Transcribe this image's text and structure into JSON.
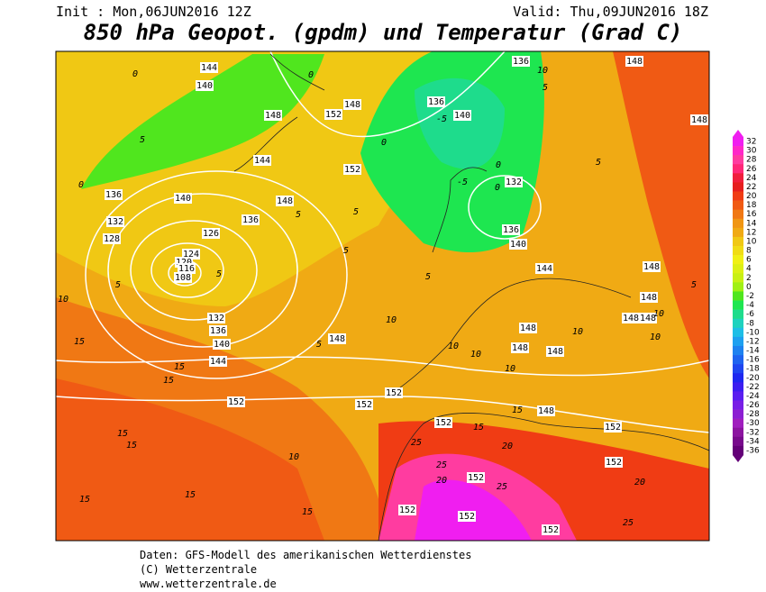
{
  "header": {
    "init": "Init : Mon,06JUN2016 12Z",
    "valid": "Valid: Thu,09JUN2016 18Z",
    "title": "850 hPa Geopot. (gpdm) und Temperatur (Grad C)"
  },
  "map": {
    "geopotential_labels": [
      144,
      140,
      148,
      152,
      148,
      144,
      152,
      148,
      136,
      140,
      136,
      132,
      128,
      126,
      124,
      120,
      116,
      108,
      132,
      136,
      140,
      144,
      152,
      148,
      152,
      152,
      152,
      148,
      152,
      148,
      148,
      148,
      148,
      148,
      148,
      148,
      148,
      148,
      136,
      136,
      140,
      132,
      136,
      140,
      144,
      152,
      152,
      152,
      152,
      152
    ],
    "temperature_labels": [
      0,
      5,
      0,
      5,
      10,
      15,
      15,
      15,
      15,
      15,
      15,
      15,
      15,
      10,
      5,
      5,
      10,
      5,
      10,
      10,
      15,
      20,
      25,
      25,
      25,
      20,
      15,
      10,
      10,
      10,
      10,
      5,
      5,
      10,
      0,
      -5,
      -5,
      0,
      0,
      5,
      5,
      0,
      5,
      20,
      25,
      5
    ]
  },
  "colorbar": {
    "values": [
      32,
      30,
      28,
      26,
      24,
      22,
      20,
      18,
      16,
      14,
      12,
      10,
      8,
      6,
      4,
      2,
      0,
      -2,
      -4,
      -6,
      -8,
      -10,
      -12,
      -14,
      -16,
      -18,
      -20,
      -22,
      -24,
      -26,
      -28,
      -30,
      -32,
      -34,
      -36
    ],
    "colors": [
      "#f01ef0",
      "#ff28c8",
      "#ff3ca0",
      "#ff2878",
      "#f01e3c",
      "#e61e1e",
      "#f03c14",
      "#f05a14",
      "#f07814",
      "#f09614",
      "#f0aa14",
      "#f0c814",
      "#f0dc14",
      "#f0f014",
      "#dcf014",
      "#c8f014",
      "#a0f014",
      "#50e61e",
      "#1ee650",
      "#1edc8c",
      "#1ed2be",
      "#1ebee6",
      "#1ea0f0",
      "#1e82f0",
      "#1e64f0",
      "#1e46f0",
      "#1e28f0",
      "#3c1ef0",
      "#5a1ef0",
      "#781ee6",
      "#8c1ed2",
      "#a01ebe",
      "#8c14a0",
      "#780a8c",
      "#640078"
    ]
  },
  "footer": {
    "line1": "Daten: GFS-Modell des amerikanischen Wetterdienstes",
    "line2": "(C) Wetterzentrale",
    "line3": "www.wetterzentrale.de"
  }
}
